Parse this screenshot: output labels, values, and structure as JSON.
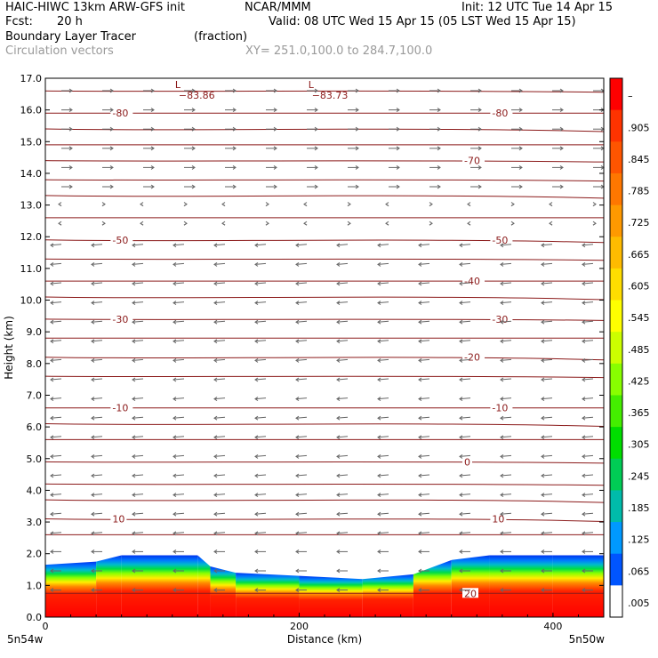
{
  "header": {
    "model": "HAIC-HIWC 13km ARW-GFS init",
    "org": "NCAR/MMM",
    "init": "Init: 12 UTC Tue 14 Apr 15",
    "fcst_label": "Fcst:",
    "fcst_value": "20 h",
    "valid": "Valid: 08 UTC Wed 15 Apr 15 (05 LST Wed 15 Apr 15)",
    "field1": "Boundary Layer Tracer",
    "field1_units": "(fraction)",
    "field2": "Circulation vectors",
    "xy": "XY= 251.0,100.0 to 284.7,100.0"
  },
  "chart_data": {
    "type": "heatmap",
    "xlabel": "Distance (km)",
    "ylabel": "Height (km)",
    "xlim": [
      0,
      440
    ],
    "ylim": [
      0,
      17
    ],
    "xticks": [
      "0",
      "200",
      "400"
    ],
    "yticks": [
      "0.0",
      "1.0",
      "2.0",
      "3.0",
      "4.0",
      "5.0",
      "6.0",
      "7.0",
      "8.0",
      "9.0",
      "10.0",
      "11.0",
      "12.0",
      "13.0",
      "14.0",
      "15.0",
      "16.0",
      "17.0"
    ],
    "x_endpoint_labels": [
      "5n54w",
      "5n50w"
    ],
    "colorbar": {
      "labels": [
        "–",
        ".905",
        ".845",
        ".785",
        ".725",
        ".665",
        ".605",
        ".545",
        ".485",
        ".425",
        ".365",
        ".305",
        ".245",
        ".185",
        ".125",
        ".065",
        ".005"
      ],
      "colors": [
        "#ff0000",
        "#ff3300",
        "#ff5500",
        "#ff7700",
        "#ff9900",
        "#ffbb00",
        "#ffdd00",
        "#ffff00",
        "#ccff00",
        "#88ff00",
        "#44ee00",
        "#00dd00",
        "#00cc55",
        "#00bbaa",
        "#0099ff",
        "#0055ff",
        "#ffffff"
      ]
    },
    "pbl_top": {
      "x": [
        0,
        40,
        60,
        120,
        130,
        150,
        200,
        250,
        290,
        320,
        350,
        400,
        440
      ],
      "top": [
        1.65,
        1.75,
        1.95,
        1.95,
        1.6,
        1.4,
        1.3,
        1.2,
        1.35,
        1.8,
        1.95,
        1.95,
        1.95
      ]
    },
    "temperature_contours": [
      {
        "label": "-80",
        "y": 15.9
      },
      {
        "label": "-70",
        "y": 14.4
      },
      {
        "label": "-50",
        "y": 11.9
      },
      {
        "label": "-40",
        "y": 10.6
      },
      {
        "label": "-30",
        "y": 9.4
      },
      {
        "label": "-20",
        "y": 8.2
      },
      {
        "label": "-10",
        "y": 6.6
      },
      {
        "label": "0",
        "y": 4.9
      },
      {
        "label": "10",
        "y": 3.1
      },
      {
        "label": "20",
        "y": 0.75
      }
    ],
    "extra_contour_heights": [
      16.6,
      15.4,
      14.9,
      13.8,
      13.3,
      12.6,
      11.3,
      10.1,
      8.8,
      7.6,
      6.1,
      5.6,
      4.2,
      3.7,
      2.6
    ],
    "min_labels": [
      {
        "label": "−83.86",
        "x": 105
      },
      {
        "label": "−83.73",
        "x": 210
      }
    ],
    "min_marker": "L"
  }
}
